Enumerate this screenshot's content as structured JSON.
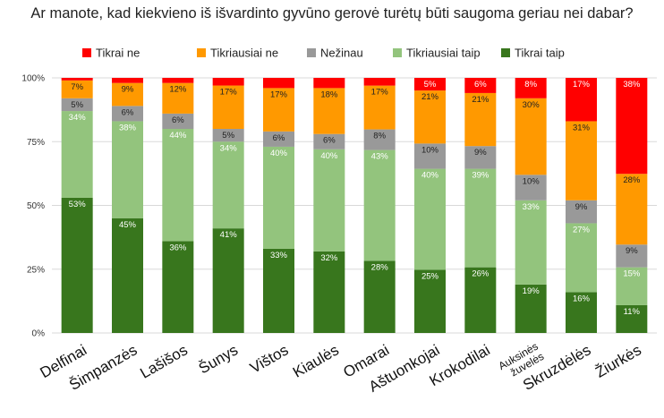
{
  "chart_data": {
    "type": "bar",
    "stacked": true,
    "title": "Ar manote, kad kiekvieno iš išvardinto gyvūno gerovė turėtų būti saugoma geriau nei dabar?",
    "categories": [
      "Delfinai",
      "Šimpanzės",
      "Lašišos",
      "Šunys",
      "Vištos",
      "Kiaulės",
      "Omarai",
      "Aštuonkojai",
      "Krokodilai",
      "Auksinės žuvelės",
      "Skruzdėlės",
      "Žiurkės"
    ],
    "category_lines": [
      [
        "Delfinai"
      ],
      [
        "Šimpanzės"
      ],
      [
        "Lašišos"
      ],
      [
        "Šunys"
      ],
      [
        "Vištos"
      ],
      [
        "Kiaulės"
      ],
      [
        "Omarai"
      ],
      [
        "Aštuonkojai"
      ],
      [
        "Krokodilai"
      ],
      [
        "Auksinės",
        "žuvelės"
      ],
      [
        "Skruzdėlės"
      ],
      [
        "Žiurkės"
      ]
    ],
    "series": [
      {
        "name": "Tikrai taip",
        "color": "#38761d",
        "values": [
          53,
          45,
          36,
          41,
          33,
          32,
          28,
          25,
          26,
          19,
          16,
          11
        ]
      },
      {
        "name": "Tikriausiai taip",
        "color": "#93c47d",
        "values": [
          34,
          38,
          44,
          34,
          40,
          40,
          43,
          40,
          39,
          33,
          27,
          15
        ]
      },
      {
        "name": "Nežinau",
        "color": "#999999",
        "values": [
          5,
          6,
          6,
          5,
          6,
          6,
          8,
          10,
          9,
          10,
          9,
          9
        ]
      },
      {
        "name": "Tikriausiai ne",
        "color": "#ff9900",
        "values": [
          7,
          9,
          12,
          17,
          17,
          18,
          17,
          21,
          21,
          30,
          31,
          28
        ]
      },
      {
        "name": "Tikrai ne",
        "color": "#ff0000",
        "values": [
          1,
          2,
          2,
          3,
          4,
          4,
          3,
          5,
          6,
          8,
          17,
          38
        ]
      }
    ],
    "labels": [
      [
        "53%",
        "45%",
        "36%",
        "41%",
        "33%",
        "32%",
        "28%",
        "25%",
        "26%",
        "19%",
        "16%",
        "11%"
      ],
      [
        "34%",
        "38%",
        "44%",
        "34%",
        "40%",
        "40%",
        "43%",
        "40%",
        "39%",
        "33%",
        "27%",
        "15%"
      ],
      [
        "5%",
        "6%",
        "6%",
        "5%",
        "6%",
        "6%",
        "8%",
        "10%",
        "9%",
        "10%",
        "9%",
        "9%"
      ],
      [
        "7%",
        "9%",
        "12%",
        "17%",
        "17%",
        "18%",
        "17%",
        "21%",
        "21%",
        "30%",
        "31%",
        "28%"
      ],
      [
        "",
        "",
        "",
        "",
        "",
        "",
        "",
        "5%",
        "6%",
        "8%",
        "17%",
        "38%"
      ]
    ],
    "legend_order": [
      "Tikrai ne",
      "Tikriausiai ne",
      "Nežinau",
      "Tikriausiai taip",
      "Tikrai taip"
    ],
    "ylim": [
      0,
      100
    ],
    "yticks": [
      "0%",
      "25%",
      "50%",
      "75%",
      "100%"
    ],
    "ytick_values": [
      0,
      25,
      50,
      75,
      100
    ],
    "grid": true,
    "legend_position": "top",
    "xlabel": "",
    "ylabel": ""
  }
}
